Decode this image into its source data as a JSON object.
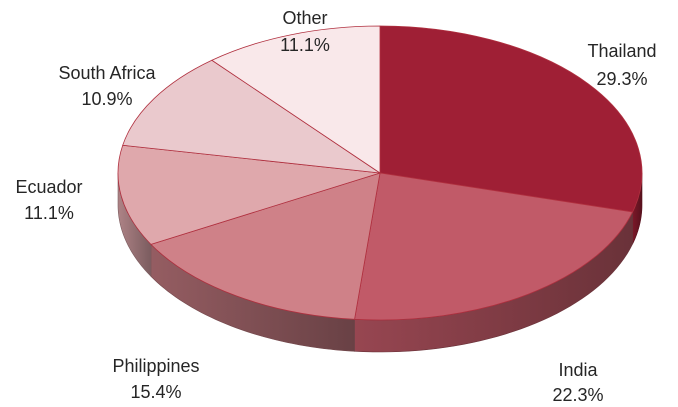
{
  "chart_data": {
    "type": "pie",
    "style": "3d",
    "start": "12 o'clock, clockwise",
    "title": "",
    "legend": "none",
    "slices": [
      {
        "label": "Thailand",
        "value": 29.3,
        "value_text": "29.3%",
        "color": "#9F1F35"
      },
      {
        "label": "India",
        "value": 22.3,
        "value_text": "22.3%",
        "color": "#C15A68"
      },
      {
        "label": "Philippines",
        "value": 15.4,
        "value_text": "15.4%",
        "color": "#CF8188"
      },
      {
        "label": "Ecuador",
        "value": 11.1,
        "value_text": "11.1%",
        "color": "#DFA8AC"
      },
      {
        "label": "South Africa",
        "value": 10.9,
        "value_text": "10.9%",
        "color": "#EAC9CD"
      },
      {
        "label": "Other",
        "value": 11.1,
        "value_text": "11.1%",
        "color": "#F9E8EA"
      }
    ]
  }
}
